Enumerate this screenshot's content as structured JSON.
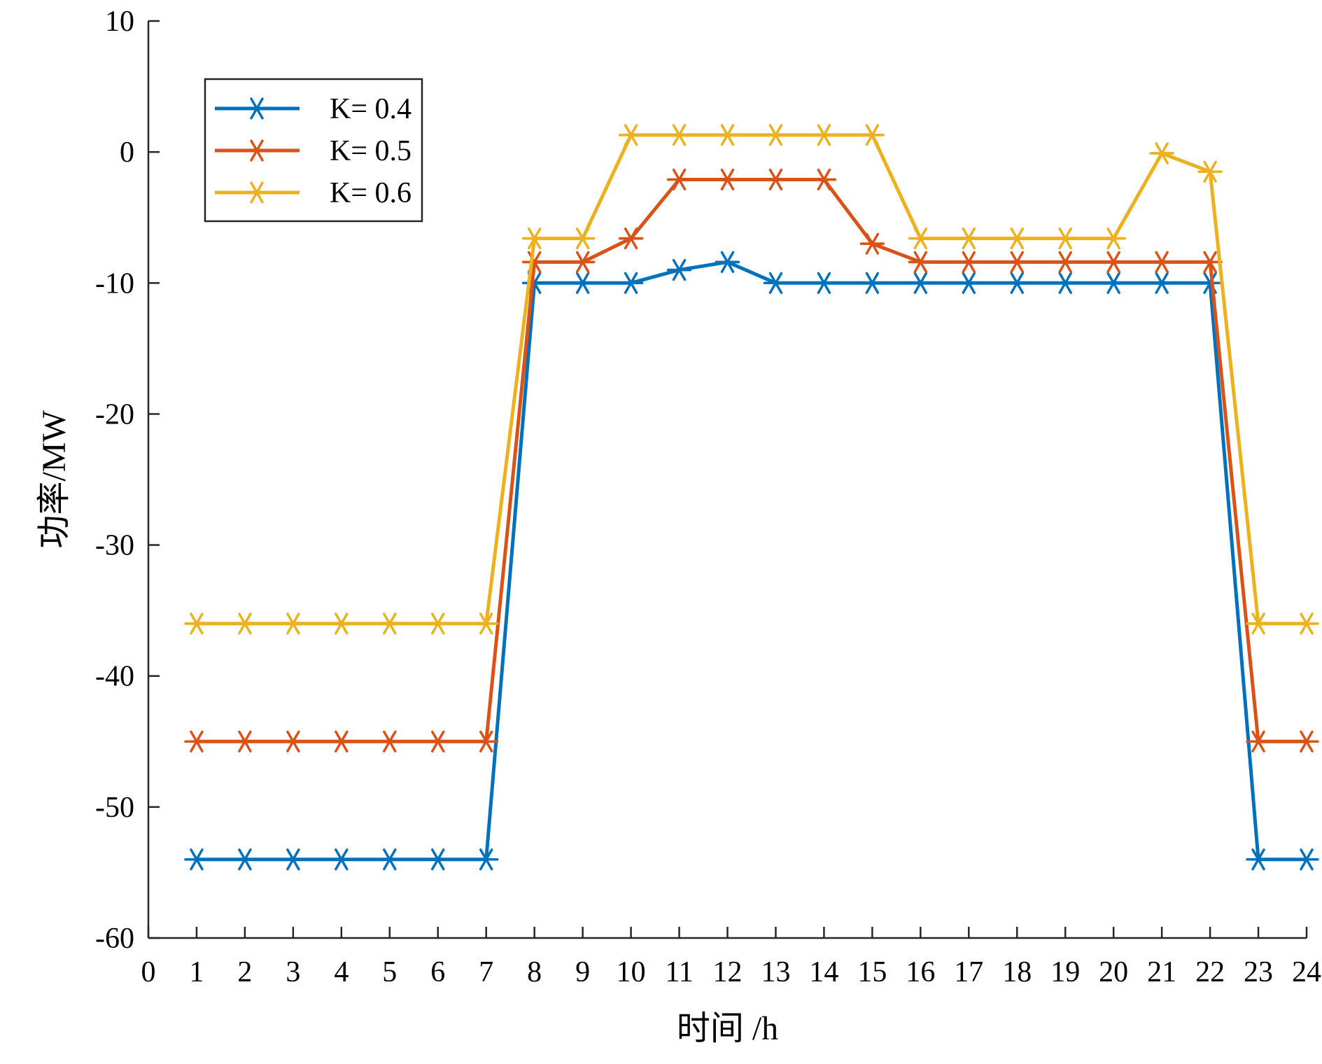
{
  "chart_data": {
    "type": "line",
    "title": "",
    "xlabel": "时间 /h",
    "ylabel": "功率/MW",
    "xlim": [
      0,
      24
    ],
    "ylim": [
      -60,
      10
    ],
    "x_ticks": [
      0,
      1,
      2,
      3,
      4,
      5,
      6,
      7,
      8,
      9,
      10,
      11,
      12,
      13,
      14,
      15,
      16,
      17,
      18,
      19,
      20,
      21,
      22,
      23,
      24
    ],
    "y_ticks": [
      10,
      0,
      -10,
      -20,
      -30,
      -40,
      -50,
      -60
    ],
    "x": [
      1,
      2,
      3,
      4,
      5,
      6,
      7,
      8,
      9,
      10,
      11,
      12,
      13,
      14,
      15,
      16,
      17,
      18,
      19,
      20,
      21,
      22,
      23,
      24
    ],
    "grid": false,
    "legend_position": "top-left",
    "marker": "asterisk",
    "series": [
      {
        "name": "K= 0.4",
        "color": "#0072BD",
        "values": [
          -54,
          -54,
          -54,
          -54,
          -54,
          -54,
          -54,
          -10,
          -10,
          -10,
          -9,
          -8.4,
          -10,
          -10,
          -10,
          -10,
          -10,
          -10,
          -10,
          -10,
          -10,
          -10,
          -54,
          -54
        ]
      },
      {
        "name": "K= 0.5",
        "color": "#D95319",
        "values": [
          -45,
          -45,
          -45,
          -45,
          -45,
          -45,
          -45,
          -8.4,
          -8.4,
          -6.6,
          -2.1,
          -2.1,
          -2.1,
          -2.1,
          -7,
          -8.4,
          -8.4,
          -8.4,
          -8.4,
          -8.4,
          -8.4,
          -8.4,
          -45,
          -45
        ]
      },
      {
        "name": "K= 0.6",
        "color": "#EDB120",
        "values": [
          -36,
          -36,
          -36,
          -36,
          -36,
          -36,
          -36,
          -6.6,
          -6.6,
          1.3,
          1.3,
          1.3,
          1.3,
          1.3,
          1.3,
          -6.6,
          -6.6,
          -6.6,
          -6.6,
          -6.6,
          -0.1,
          -1.5,
          -36,
          -36
        ]
      }
    ]
  }
}
